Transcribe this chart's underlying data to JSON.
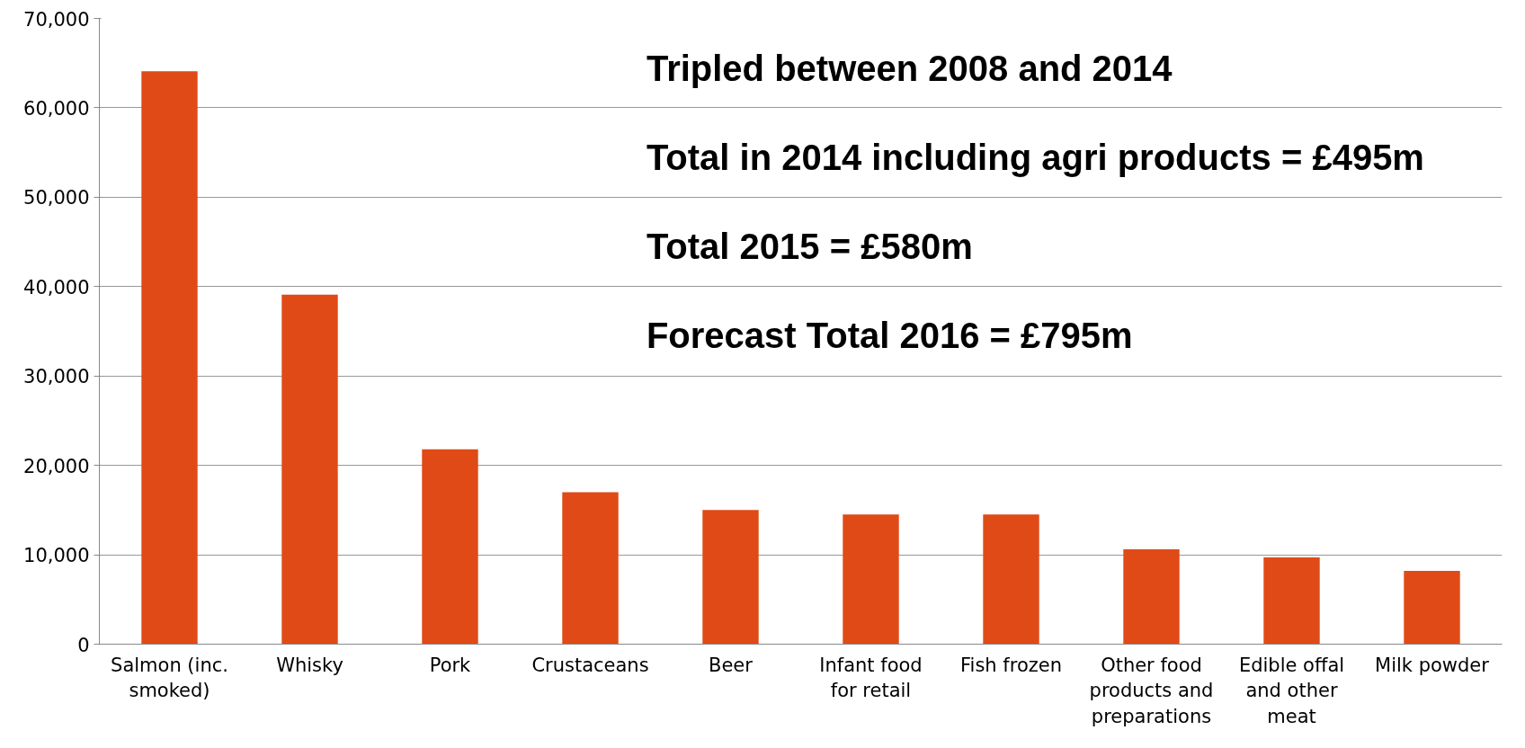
{
  "chart_data": {
    "type": "bar",
    "categories": [
      "Salmon (inc. smoked)",
      "Whisky",
      "Pork",
      "Crustaceans",
      "Beer",
      "Infant food for retail",
      "Fish frozen",
      "Other food products and preparations",
      "Edible offal and other meat",
      "Milk powder"
    ],
    "values": [
      64100,
      39100,
      21800,
      17000,
      15000,
      14500,
      14500,
      10600,
      9700,
      8200
    ],
    "color": "#e04a17",
    "ylim": [
      0,
      70000
    ],
    "yticks": [
      {
        "value": 0,
        "label": "0"
      },
      {
        "value": 10000,
        "label": "10,000"
      },
      {
        "value": 20000,
        "label": "20,000"
      },
      {
        "value": 30000,
        "label": "30,000"
      },
      {
        "value": 40000,
        "label": "40,000"
      },
      {
        "value": 50000,
        "label": "50,000"
      },
      {
        "value": 60000,
        "label": "60,000"
      },
      {
        "value": 70000,
        "label": "70,000"
      }
    ],
    "grid": "y",
    "annotations": [
      "Tripled between 2008 and 2014",
      "Total in 2014 including agri products = £495m",
      "Total 2015 = £580m",
      "Forecast Total 2016 = £795m"
    ]
  }
}
